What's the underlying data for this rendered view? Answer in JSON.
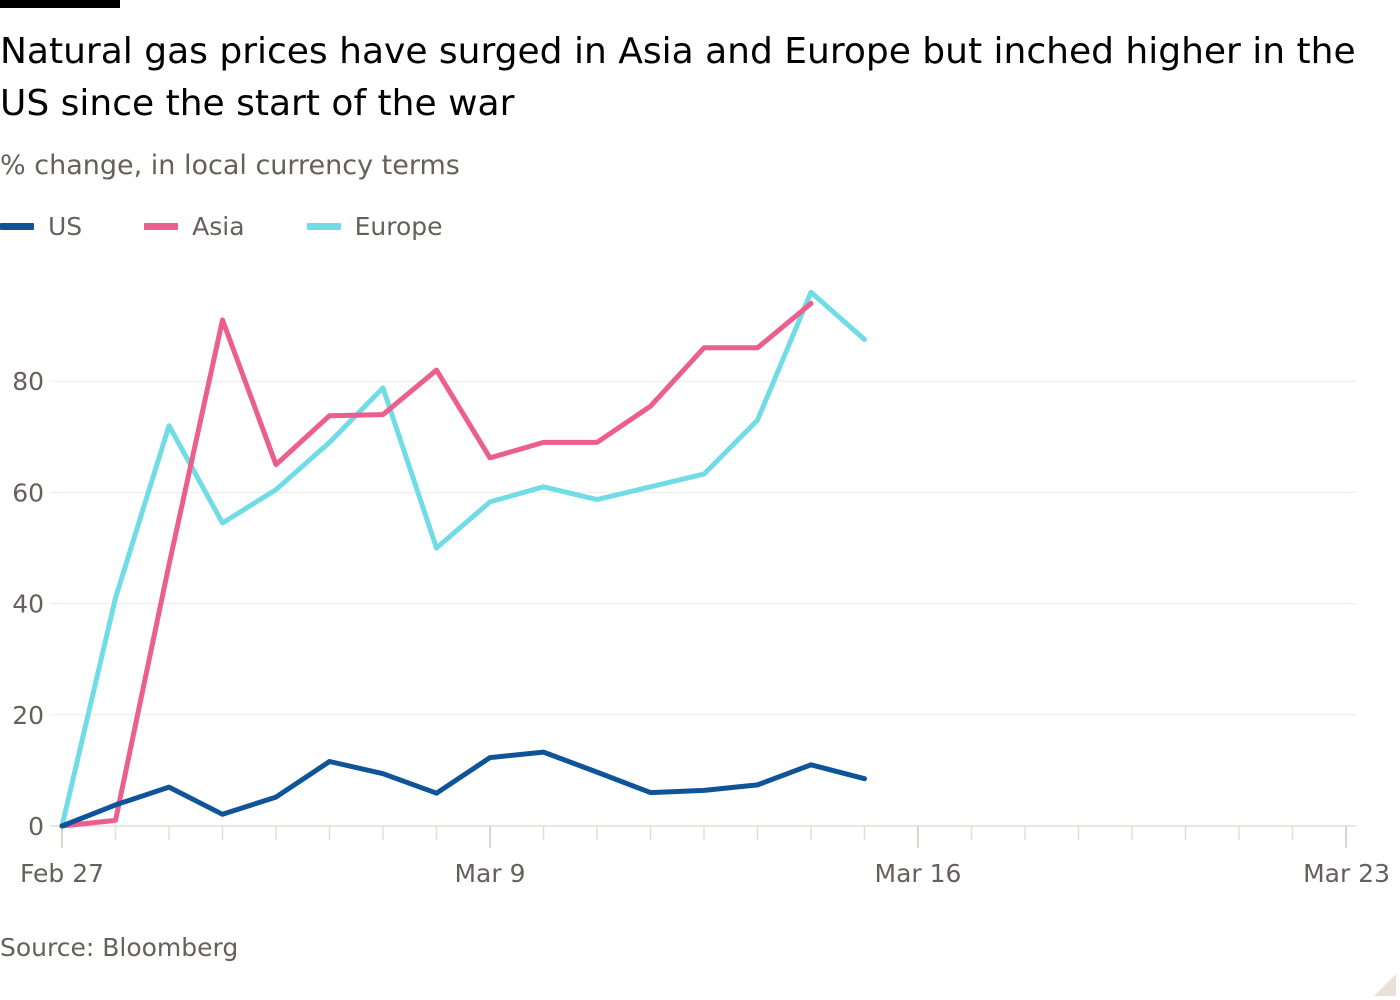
{
  "chart_data": {
    "type": "line",
    "title": "Natural gas prices have surged in Asia and Europe but inched higher in the US since the start of the war",
    "subtitle": "% change, in local currency terms",
    "source": "Source: Bloomberg",
    "xlabel": "",
    "ylabel": "",
    "ylim": [
      0,
      100
    ],
    "yticks": [
      0,
      20,
      40,
      60,
      80
    ],
    "ytick_labels": [
      "0",
      "20",
      "40",
      "60",
      "80"
    ],
    "xlim": [
      0,
      24
    ],
    "xticks": [
      0,
      8,
      16,
      24
    ],
    "xtick_labels": [
      "Feb 27",
      "Mar 9",
      "Mar 16",
      "Mar 23"
    ],
    "minor_xticks": [
      0,
      1,
      2,
      3,
      4,
      5,
      6,
      7,
      8,
      9,
      10,
      11,
      12,
      13,
      14,
      15,
      16,
      17,
      18,
      19,
      20,
      21,
      22,
      23,
      24
    ],
    "grid": true,
    "legend_position": "top-left",
    "series": [
      {
        "name": "US",
        "color": "#0f5499",
        "x": [
          0,
          1,
          2,
          3,
          4,
          5,
          6,
          7,
          8,
          9,
          10,
          11,
          12,
          13,
          14,
          15,
          16
        ],
        "values": [
          0,
          3.8,
          7,
          2.1,
          5.2,
          11.6,
          9.4,
          5.9,
          12.3,
          13.3,
          9.7,
          6,
          6.4,
          7.4,
          11,
          8.5,
          null
        ]
      },
      {
        "name": "Asia",
        "color": "#eb5e8d",
        "x": [
          0,
          1,
          2,
          3,
          4,
          5,
          6,
          7,
          8,
          9,
          10,
          11,
          12,
          13,
          14,
          15,
          16
        ],
        "values": [
          0,
          1,
          47,
          91,
          65,
          73.8,
          74,
          82,
          66.2,
          69,
          69,
          75.5,
          86,
          86,
          94,
          null,
          null
        ]
      },
      {
        "name": "Europe",
        "color": "#70dce6",
        "x": [
          0,
          1,
          2,
          3,
          4,
          5,
          6,
          7,
          8,
          9,
          10,
          11,
          12,
          13,
          14,
          15,
          16
        ],
        "values": [
          0,
          41,
          72,
          54.5,
          60.5,
          69,
          78.8,
          50,
          58.3,
          61,
          58.7,
          61,
          63.3,
          73,
          96,
          87.5,
          null
        ]
      }
    ]
  }
}
